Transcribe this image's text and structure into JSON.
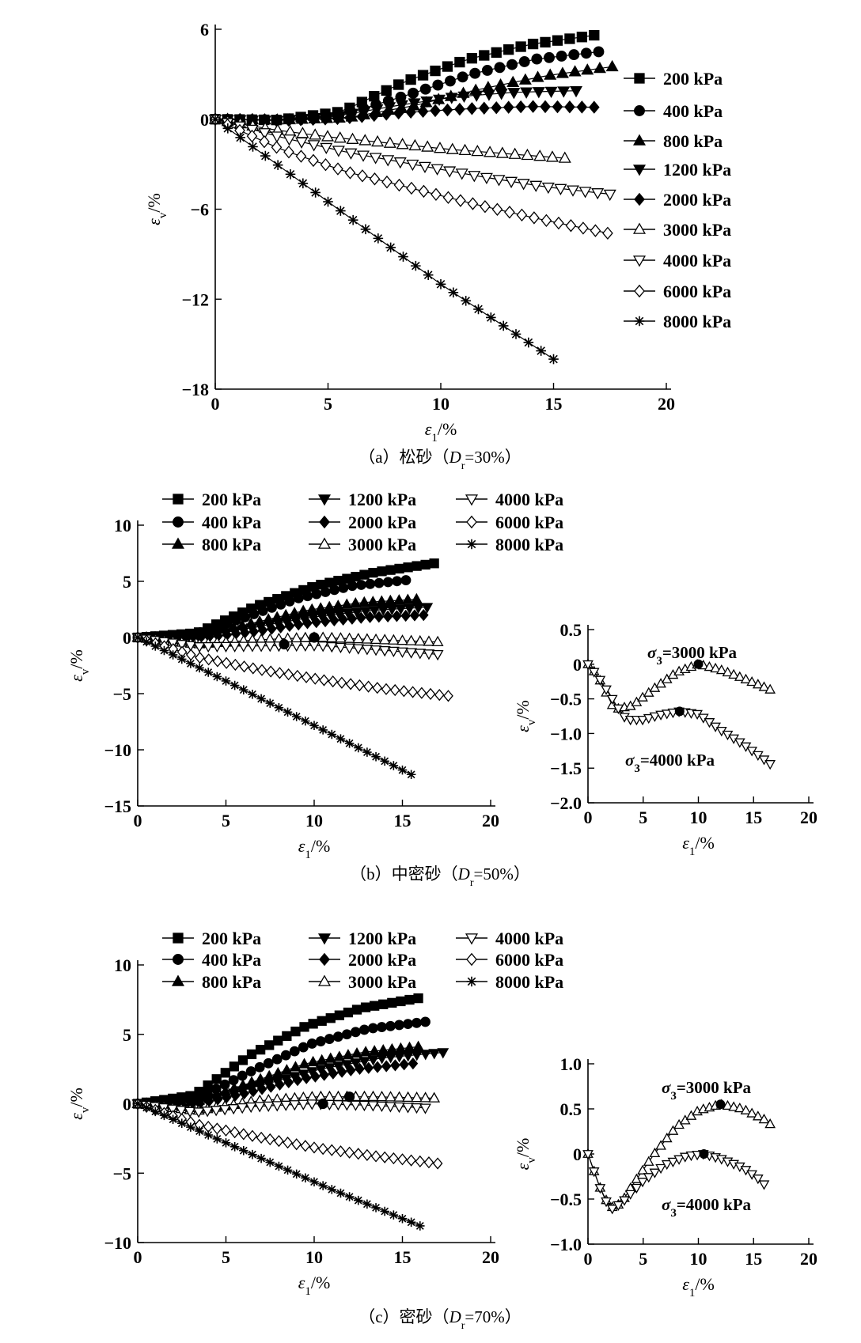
{
  "pressure_unit": "kPa",
  "chart_data": [
    {
      "id": "a",
      "type": "scatter",
      "caption": {
        "label": "（a）松砂（",
        "d_symbol": "D",
        "d_sub": "r",
        "value": "=30%）"
      },
      "xlabel": {
        "symbol": "ε",
        "sub": "1",
        "unit": "/%"
      },
      "ylabel": {
        "symbol": "ε",
        "sub": "v",
        "unit": "/%"
      },
      "xlim": [
        0,
        20
      ],
      "ylim": [
        -18,
        6
      ],
      "xticks": [
        "0",
        "5",
        "10",
        "15",
        "20"
      ],
      "yticks": [
        "6",
        "0",
        "−6",
        "−12",
        "−18"
      ],
      "legend_position": "right",
      "series": [
        {
          "name": "200 kPa",
          "marker": "square",
          "xmax": 16.8,
          "y": [
            0,
            -0.05,
            0.5,
            2.5,
            4.0,
            5.0,
            5.6
          ]
        },
        {
          "name": "400 kPa",
          "marker": "circle",
          "xmax": 17.0,
          "y": [
            0,
            -0.05,
            0.3,
            1.6,
            3.0,
            4.0,
            4.5
          ]
        },
        {
          "name": "800 kPa",
          "marker": "triangle-up",
          "xmax": 17.6,
          "y": [
            0,
            -0.05,
            0.1,
            0.9,
            2.0,
            2.9,
            3.5
          ]
        },
        {
          "name": "1200 kPa",
          "marker": "triangle-down",
          "xmax": 16.0,
          "y": [
            0,
            -0.08,
            0.2,
            0.9,
            1.5,
            1.8,
            1.9
          ]
        },
        {
          "name": "2000 kPa",
          "marker": "diamond",
          "xmax": 16.8,
          "y": [
            0,
            -0.08,
            0.05,
            0.45,
            0.7,
            0.85,
            0.8
          ]
        },
        {
          "name": "3000 kPa",
          "marker": "triangle-up-open",
          "xmax": 15.5,
          "y": [
            0,
            -0.7,
            -1.2,
            -1.6,
            -2.0,
            -2.3,
            -2.6
          ]
        },
        {
          "name": "4000 kPa",
          "marker": "triangle-down-open",
          "xmax": 17.5,
          "y": [
            0,
            -1.2,
            -2.2,
            -3.0,
            -3.8,
            -4.5,
            -5.0
          ]
        },
        {
          "name": "6000 kPa",
          "marker": "diamond-open",
          "xmax": 17.4,
          "y": [
            0,
            -2.0,
            -3.5,
            -4.6,
            -5.7,
            -6.7,
            -7.6
          ]
        },
        {
          "name": "8000 kPa",
          "marker": "asterisk",
          "xmax": 15.0,
          "y": [
            0,
            -5.5,
            -11.0,
            -16.0
          ]
        }
      ]
    },
    {
      "id": "b",
      "type": "scatter",
      "caption": {
        "label": "（b）中密砂（",
        "d_symbol": "D",
        "d_sub": "r",
        "value": "=50%）"
      },
      "xlabel": {
        "symbol": "ε",
        "sub": "1",
        "unit": "/%"
      },
      "ylabel": {
        "symbol": "ε",
        "sub": "v",
        "unit": "/%"
      },
      "xlim": [
        0,
        20
      ],
      "ylim": [
        -15,
        10
      ],
      "xticks": [
        "0",
        "5",
        "10",
        "15",
        "20"
      ],
      "yticks": [
        "10",
        "5",
        "0",
        "−5",
        "−10",
        "−15"
      ],
      "legend_position": "top",
      "series": [
        {
          "name": "200 kPa",
          "marker": "square",
          "xmax": 16.8,
          "y": [
            0,
            0.4,
            2.8,
            4.6,
            5.8,
            6.6
          ]
        },
        {
          "name": "400 kPa",
          "marker": "circle",
          "xmax": 15.2,
          "y": [
            0,
            0.2,
            1.8,
            3.5,
            4.6,
            5.1
          ]
        },
        {
          "name": "800 kPa",
          "marker": "triangle-up",
          "xmax": 15.8,
          "y": [
            0,
            0.1,
            1.2,
            2.4,
            3.1,
            3.4
          ]
        },
        {
          "name": "1200 kPa",
          "marker": "triangle-down",
          "xmax": 16.4,
          "y": [
            0,
            0.0,
            0.9,
            1.8,
            2.4,
            2.7
          ]
        },
        {
          "name": "2000 kPa",
          "marker": "diamond",
          "xmax": 16.2,
          "y": [
            0,
            -0.1,
            0.5,
            1.3,
            1.8,
            2.0
          ]
        },
        {
          "name": "3000 kPa",
          "marker": "triangle-up-open",
          "xmax": 17.0,
          "y": [
            0,
            -0.6,
            -0.2,
            0.0,
            -0.2,
            -0.4
          ]
        },
        {
          "name": "4000 kPa",
          "marker": "triangle-down-open",
          "xmax": 17.0,
          "y": [
            0,
            -0.8,
            -0.75,
            -0.7,
            -1.1,
            -1.5
          ]
        },
        {
          "name": "6000 kPa",
          "marker": "diamond-open",
          "xmax": 17.6,
          "y": [
            0,
            -1.8,
            -2.9,
            -3.8,
            -4.6,
            -5.2
          ]
        },
        {
          "name": "8000 kPa",
          "marker": "asterisk",
          "xmax": 15.5,
          "y": [
            0,
            -4.0,
            -8.1,
            -12.2
          ]
        }
      ],
      "highlight": [
        {
          "x": 8.3,
          "y": -0.6
        },
        {
          "x": 10.0,
          "y": 0.0
        }
      ]
    },
    {
      "id": "b-inset",
      "type": "scatter",
      "xlabel": {
        "symbol": "ε",
        "sub": "1",
        "unit": "/%"
      },
      "ylabel": {
        "symbol": "ε",
        "sub": "v",
        "unit": "/%"
      },
      "xlim": [
        0,
        20
      ],
      "ylim": [
        -2.0,
        0.5
      ],
      "xticks": [
        "0",
        "5",
        "10",
        "15",
        "20"
      ],
      "yticks": [
        "0.5",
        "0",
        "−0.5",
        "−1.0",
        "−1.5",
        "−2.0"
      ],
      "series": [
        {
          "name": "3000 kPa",
          "marker": "triangle-up-open",
          "points": [
            [
              0,
              0
            ],
            [
              0.8,
              -0.15
            ],
            [
              1.5,
              -0.35
            ],
            [
              2.0,
              -0.55
            ],
            [
              2.5,
              -0.65
            ],
            [
              4,
              -0.6
            ],
            [
              6,
              -0.35
            ],
            [
              8,
              -0.12
            ],
            [
              10,
              0
            ],
            [
              12,
              -0.08
            ],
            [
              14,
              -0.2
            ],
            [
              15.5,
              -0.3
            ],
            [
              16.7,
              -0.38
            ]
          ]
        },
        {
          "name": "4000 kPa",
          "marker": "triangle-down-open",
          "points": [
            [
              0,
              0
            ],
            [
              1,
              -0.2
            ],
            [
              2,
              -0.45
            ],
            [
              3,
              -0.7
            ],
            [
              3.5,
              -0.8
            ],
            [
              5,
              -0.8
            ],
            [
              6.5,
              -0.73
            ],
            [
              8.3,
              -0.68
            ],
            [
              10,
              -0.72
            ],
            [
              12,
              -0.95
            ],
            [
              14,
              -1.15
            ],
            [
              16,
              -1.38
            ],
            [
              17,
              -1.5
            ]
          ]
        }
      ],
      "annotations": [
        {
          "symbol": "σ",
          "sub": "3",
          "text": "=3000 kPa"
        },
        {
          "symbol": "σ",
          "sub": "3",
          "text": "=4000 kPa"
        }
      ],
      "highlight": [
        {
          "x": 10.0,
          "y": 0.0
        },
        {
          "x": 8.3,
          "y": -0.68
        }
      ]
    },
    {
      "id": "c",
      "type": "scatter",
      "caption": {
        "label": "（c）密砂（",
        "d_symbol": "D",
        "d_sub": "r",
        "value": "=70%）"
      },
      "xlabel": {
        "symbol": "ε",
        "sub": "1",
        "unit": "/%"
      },
      "ylabel": {
        "symbol": "ε",
        "sub": "v",
        "unit": "/%"
      },
      "xlim": [
        0,
        20
      ],
      "ylim": [
        -10,
        10
      ],
      "xticks": [
        "0",
        "5",
        "10",
        "15",
        "20"
      ],
      "yticks": [
        "10",
        "5",
        "0",
        "−5",
        "−10"
      ],
      "legend_position": "top",
      "series": [
        {
          "name": "200 kPa",
          "marker": "square",
          "xmax": 15.9,
          "y": [
            0,
            0.6,
            3.5,
            5.6,
            6.9,
            7.6
          ]
        },
        {
          "name": "400 kPa",
          "marker": "circle",
          "xmax": 16.3,
          "y": [
            0,
            0.3,
            2.4,
            4.3,
            5.4,
            5.9
          ]
        },
        {
          "name": "800 kPa",
          "marker": "triangle-up",
          "xmax": 15.9,
          "y": [
            0,
            0.1,
            1.5,
            2.9,
            3.7,
            4.1
          ]
        },
        {
          "name": "1200 kPa",
          "marker": "triangle-down",
          "xmax": 17.3,
          "y": [
            0,
            0.1,
            1.3,
            2.5,
            3.3,
            3.7
          ]
        },
        {
          "name": "2000 kPa",
          "marker": "diamond",
          "xmax": 15.6,
          "y": [
            0,
            -0.1,
            0.8,
            1.8,
            2.5,
            2.9
          ]
        },
        {
          "name": "3000 kPa",
          "marker": "triangle-up-open",
          "xmax": 16.8,
          "y": [
            0,
            -0.5,
            0.2,
            0.5,
            0.5,
            0.4
          ]
        },
        {
          "name": "4000 kPa",
          "marker": "triangle-down-open",
          "xmax": 16.3,
          "y": [
            0,
            -0.6,
            -0.2,
            0.0,
            -0.1,
            -0.3
          ]
        },
        {
          "name": "6000 kPa",
          "marker": "diamond-open",
          "xmax": 17.0,
          "y": [
            0,
            -1.5,
            -2.4,
            -3.2,
            -3.8,
            -4.3
          ]
        },
        {
          "name": "8000 kPa",
          "marker": "asterisk",
          "xmax": 16.0,
          "y": [
            0,
            -3.0,
            -6.0,
            -8.8
          ]
        }
      ],
      "highlight": [
        {
          "x": 10.5,
          "y": 0.0
        },
        {
          "x": 12.0,
          "y": 0.5
        }
      ]
    },
    {
      "id": "c-inset",
      "type": "scatter",
      "xlabel": {
        "symbol": "ε",
        "sub": "1",
        "unit": "/%"
      },
      "ylabel": {
        "symbol": "ε",
        "sub": "v",
        "unit": "/%"
      },
      "xlim": [
        0,
        20
      ],
      "ylim": [
        -1.0,
        1.0
      ],
      "xticks": [
        "0",
        "5",
        "10",
        "15",
        "20"
      ],
      "yticks": [
        "1.0",
        "0.5",
        "0",
        "−0.5",
        "−1.0"
      ],
      "series": [
        {
          "name": "3000 kPa",
          "marker": "triangle-up-open",
          "points": [
            [
              0,
              0
            ],
            [
              1,
              -0.35
            ],
            [
              2,
              -0.6
            ],
            [
              3,
              -0.55
            ],
            [
              4,
              -0.35
            ],
            [
              6,
              0
            ],
            [
              8,
              0.3
            ],
            [
              10,
              0.48
            ],
            [
              12,
              0.55
            ],
            [
              14,
              0.5
            ],
            [
              16,
              0.38
            ],
            [
              16.8,
              0.3
            ]
          ]
        },
        {
          "name": "4000 kPa",
          "marker": "triangle-down-open",
          "points": [
            [
              0,
              0
            ],
            [
              1,
              -0.35
            ],
            [
              2,
              -0.62
            ],
            [
              3,
              -0.55
            ],
            [
              5,
              -0.3
            ],
            [
              7,
              -0.12
            ],
            [
              9,
              -0.02
            ],
            [
              10.5,
              0
            ],
            [
              12,
              -0.05
            ],
            [
              14,
              -0.15
            ],
            [
              15.5,
              -0.28
            ],
            [
              16.3,
              -0.38
            ]
          ]
        }
      ],
      "annotations": [
        {
          "symbol": "σ",
          "sub": "3",
          "text": "=3000 kPa"
        },
        {
          "symbol": "σ",
          "sub": "3",
          "text": "=4000 kPa"
        }
      ],
      "highlight": [
        {
          "x": 12.0,
          "y": 0.55
        },
        {
          "x": 10.5,
          "y": 0.0
        }
      ]
    }
  ]
}
